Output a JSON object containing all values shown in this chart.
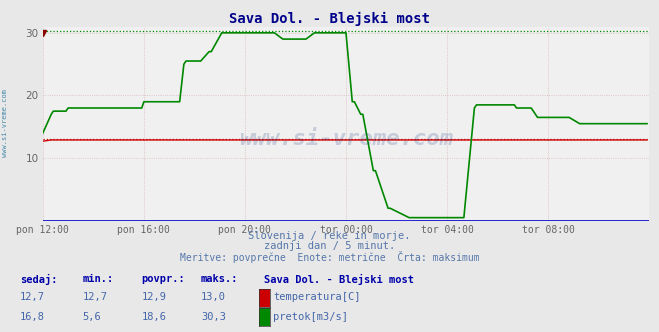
{
  "title": "Sava Dol. - Blejski most",
  "title_color": "#00008b",
  "bg_color": "#e8e8e8",
  "plot_bg_color": "#f0f0f0",
  "xlim": [
    0,
    288
  ],
  "ylim": [
    0,
    31
  ],
  "yticks": [
    10,
    20,
    30
  ],
  "xtick_labels": [
    "pon 12:00",
    "pon 16:00",
    "pon 20:00",
    "tor 00:00",
    "tor 04:00",
    "tor 08:00"
  ],
  "xtick_positions": [
    0,
    48,
    96,
    144,
    192,
    240
  ],
  "temperature_color": "#cc0000",
  "flow_color": "#008800",
  "temp_max": 13.0,
  "flow_max": 30.3,
  "subtitle1": "Slovenija / reke in morje.",
  "subtitle2": "zadnji dan / 5 minut.",
  "subtitle3": "Meritve: povprečne  Enote: metrične  Črta: maksimum",
  "subtitle_color": "#5577aa",
  "table_header": [
    "sedaj:",
    "min.:",
    "povpr.:",
    "maks.:",
    "Sava Dol. - Blejski most"
  ],
  "table_row1": [
    "12,7",
    "12,7",
    "12,9",
    "13,0"
  ],
  "table_row2": [
    "16,8",
    "5,6",
    "18,6",
    "30,3"
  ],
  "table_label1": "temperatura[C]",
  "table_label2": "pretok[m3/s]",
  "table_color": "#4466aa",
  "table_header_color": "#0000aa",
  "watermark": "www.si-vreme.com",
  "watermark_color": "#1a3a7a",
  "left_label": "www.si-vreme.com",
  "left_label_color": "#4488aa",
  "grid_major_color": "#d8b8b8",
  "grid_minor_color": "#e0d0d0",
  "axis_line_color": "#0000cc",
  "arrow_color": "#cc0000"
}
